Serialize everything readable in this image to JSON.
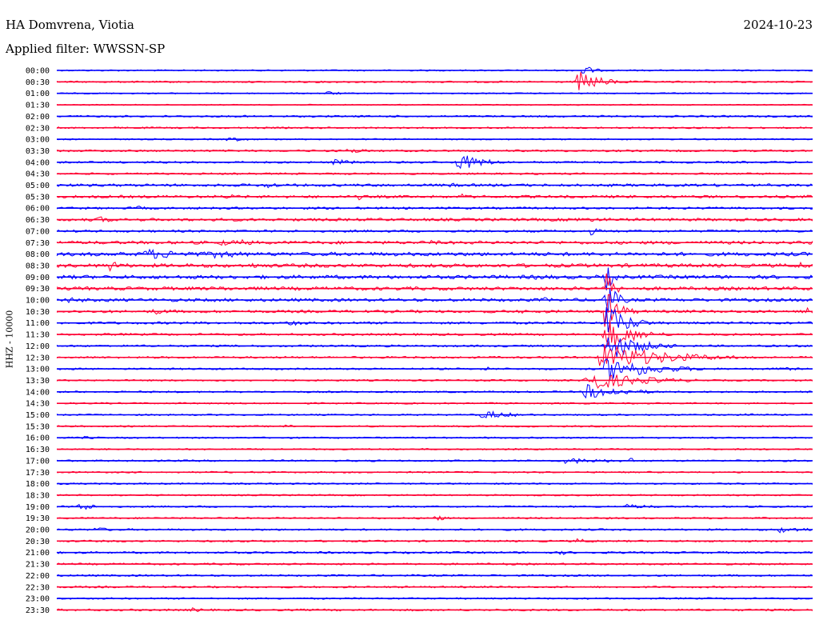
{
  "header": {
    "station": "HA Domvrena, Viotia",
    "date": "2024-10-23",
    "filter": "Applied filter: WWSSN-SP"
  },
  "chart_data": {
    "type": "line",
    "title": "HA Domvrena, Viotia",
    "ylabel": "HHZ - 10000",
    "xlabel": "",
    "categories": [
      "00:00",
      "00:30",
      "01:00",
      "01:30",
      "02:00",
      "02:30",
      "03:00",
      "03:30",
      "04:00",
      "04:30",
      "05:00",
      "05:30",
      "06:00",
      "06:30",
      "07:00",
      "07:30",
      "08:00",
      "08:30",
      "09:00",
      "09:30",
      "10:00",
      "10:30",
      "11:00",
      "11:30",
      "12:00",
      "12:30",
      "13:00",
      "13:30",
      "14:00",
      "14:30",
      "15:00",
      "15:30",
      "16:00",
      "16:30",
      "17:00",
      "17:30",
      "18:00",
      "18:30",
      "19:00",
      "19:30",
      "20:00",
      "20:30",
      "21:00",
      "21:30",
      "22:00",
      "22:30",
      "23:00",
      "23:30"
    ],
    "trace_minutes": 30,
    "grid": false,
    "colors": {
      "even": "#0000ff",
      "odd": "#ff0033"
    },
    "noise_level": [
      1.0,
      1.2,
      0.9,
      0.8,
      1.3,
      1.2,
      1.0,
      1.4,
      1.4,
      1.3,
      1.9,
      1.9,
      1.6,
      2.0,
      1.6,
      2.2,
      2.6,
      2.6,
      2.6,
      2.4,
      2.2,
      1.9,
      1.7,
      1.5,
      1.4,
      1.4,
      1.3,
      1.2,
      1.2,
      1.1,
      1.1,
      1.1,
      1.1,
      1.1,
      1.2,
      1.1,
      1.1,
      1.1,
      1.2,
      1.2,
      1.3,
      1.3,
      1.4,
      1.3,
      1.3,
      1.3,
      1.2,
      1.4
    ],
    "events": [
      {
        "trace": "00:30",
        "minute": 20.7,
        "amp": 14,
        "dur": 0.9
      },
      {
        "trace": "00:00",
        "minute": 20.8,
        "amp": 10,
        "dur": 0.4
      },
      {
        "trace": "01:00",
        "minute": 10.7,
        "amp": 3,
        "dur": 0.6
      },
      {
        "trace": "03:00",
        "minute": 6.8,
        "amp": 3,
        "dur": 0.9
      },
      {
        "trace": "03:30",
        "minute": 11.5,
        "amp": 4,
        "dur": 0.8
      },
      {
        "trace": "04:00",
        "minute": 11.0,
        "amp": 4,
        "dur": 1.0
      },
      {
        "trace": "04:00",
        "minute": 15.9,
        "amp": 12,
        "dur": 1.0
      },
      {
        "trace": "05:00",
        "minute": 8.3,
        "amp": 5,
        "dur": 0.6
      },
      {
        "trace": "05:00",
        "minute": 15.5,
        "amp": 3,
        "dur": 1.2
      },
      {
        "trace": "05:30",
        "minute": 6.7,
        "amp": 3,
        "dur": 1.2
      },
      {
        "trace": "05:30",
        "minute": 12.0,
        "amp": 4,
        "dur": 0.3
      },
      {
        "trace": "05:30",
        "minute": 16.1,
        "amp": 4,
        "dur": 0.4
      },
      {
        "trace": "06:00",
        "minute": 3.2,
        "amp": 3,
        "dur": 0.8
      },
      {
        "trace": "06:30",
        "minute": 1.7,
        "amp": 5,
        "dur": 0.5
      },
      {
        "trace": "06:30",
        "minute": 20.3,
        "amp": 3,
        "dur": 4.0
      },
      {
        "trace": "07:00",
        "minute": 21.2,
        "amp": 5,
        "dur": 0.4
      },
      {
        "trace": "07:30",
        "minute": 6.5,
        "amp": 4,
        "dur": 1.5
      },
      {
        "trace": "07:30",
        "minute": 7.3,
        "amp": 4,
        "dur": 1.0
      },
      {
        "trace": "07:30",
        "minute": 14.9,
        "amp": 5,
        "dur": 0.3
      },
      {
        "trace": "08:00",
        "minute": 3.5,
        "amp": 7,
        "dur": 2.5
      },
      {
        "trace": "08:00",
        "minute": 6.3,
        "amp": 6,
        "dur": 1.5
      },
      {
        "trace": "08:30",
        "minute": 2.1,
        "amp": 8,
        "dur": 0.5
      },
      {
        "trace": "08:30",
        "minute": 7.8,
        "amp": 4,
        "dur": 1.2
      },
      {
        "trace": "08:30",
        "minute": 29.5,
        "amp": 5,
        "dur": 0.6
      },
      {
        "trace": "09:00",
        "minute": 19.0,
        "amp": 4,
        "dur": 1.5
      },
      {
        "trace": "09:00",
        "minute": 21.8,
        "amp": 18,
        "dur": 0.3
      },
      {
        "trace": "09:30",
        "minute": 6.5,
        "amp": 4,
        "dur": 0.6
      },
      {
        "trace": "09:30",
        "minute": 21.8,
        "amp": 24,
        "dur": 0.3
      },
      {
        "trace": "09:30",
        "minute": 26.4,
        "amp": 4,
        "dur": 0.2
      },
      {
        "trace": "10:00",
        "minute": 0.4,
        "amp": 4,
        "dur": 1.2
      },
      {
        "trace": "10:00",
        "minute": 19.4,
        "amp": 5,
        "dur": 0.2
      },
      {
        "trace": "10:00",
        "minute": 21.8,
        "amp": 26,
        "dur": 0.4
      },
      {
        "trace": "10:30",
        "minute": 3.8,
        "amp": 4,
        "dur": 1.2
      },
      {
        "trace": "10:30",
        "minute": 18.5,
        "amp": 3,
        "dur": 0.8
      },
      {
        "trace": "10:30",
        "minute": 21.8,
        "amp": 30,
        "dur": 0.5
      },
      {
        "trace": "10:30",
        "minute": 29.8,
        "amp": 6,
        "dur": 0.3
      },
      {
        "trace": "11:00",
        "minute": 9.2,
        "amp": 4,
        "dur": 0.9
      },
      {
        "trace": "11:00",
        "minute": 21.8,
        "amp": 26,
        "dur": 0.8
      },
      {
        "trace": "11:30",
        "minute": 21.8,
        "amp": 22,
        "dur": 1.0
      },
      {
        "trace": "11:30",
        "minute": 23.4,
        "amp": 3,
        "dur": 0.8
      },
      {
        "trace": "12:00",
        "minute": 21.8,
        "amp": 20,
        "dur": 1.2
      },
      {
        "trace": "12:00",
        "minute": 23.8,
        "amp": 5,
        "dur": 0.6
      },
      {
        "trace": "12:30",
        "minute": 21.6,
        "amp": 18,
        "dur": 2.5
      },
      {
        "trace": "12:30",
        "minute": 25.3,
        "amp": 4,
        "dur": 0.3
      },
      {
        "trace": "13:00",
        "minute": 17.0,
        "amp": 3,
        "dur": 0.6
      },
      {
        "trace": "13:00",
        "minute": 21.8,
        "amp": 16,
        "dur": 1.8
      },
      {
        "trace": "13:00",
        "minute": 28.6,
        "amp": 3,
        "dur": 0.9
      },
      {
        "trace": "13:30",
        "minute": 21.0,
        "amp": 14,
        "dur": 2.0
      },
      {
        "trace": "14:00",
        "minute": 21.0,
        "amp": 10,
        "dur": 1.5
      },
      {
        "trace": "14:00",
        "minute": 21.8,
        "amp": 8,
        "dur": 0.4
      },
      {
        "trace": "15:00",
        "minute": 16.9,
        "amp": 6,
        "dur": 1.2
      },
      {
        "trace": "15:00",
        "minute": 27.3,
        "amp": 3,
        "dur": 0.8
      },
      {
        "trace": "15:30",
        "minute": 9.0,
        "amp": 2,
        "dur": 1.5
      },
      {
        "trace": "16:00",
        "minute": 1.0,
        "amp": 2,
        "dur": 1.2
      },
      {
        "trace": "17:00",
        "minute": 20.2,
        "amp": 4,
        "dur": 2.2
      },
      {
        "trace": "17:00",
        "minute": 22.7,
        "amp": 4,
        "dur": 0.5
      },
      {
        "trace": "19:00",
        "minute": 0.9,
        "amp": 6,
        "dur": 0.6
      },
      {
        "trace": "19:00",
        "minute": 22.6,
        "amp": 3,
        "dur": 1.5
      },
      {
        "trace": "19:30",
        "minute": 15.0,
        "amp": 5,
        "dur": 0.4
      },
      {
        "trace": "20:00",
        "minute": 1.5,
        "amp": 3,
        "dur": 1.0
      },
      {
        "trace": "20:00",
        "minute": 28.7,
        "amp": 4,
        "dur": 1.5
      },
      {
        "trace": "20:30",
        "minute": 20.6,
        "amp": 3,
        "dur": 1.2
      },
      {
        "trace": "21:00",
        "minute": 20.0,
        "amp": 3,
        "dur": 0.5
      },
      {
        "trace": "21:30",
        "minute": 6.7,
        "amp": 2,
        "dur": 1.0
      },
      {
        "trace": "22:00",
        "minute": 0.9,
        "amp": 2,
        "dur": 0.6
      },
      {
        "trace": "23:30",
        "minute": 5.3,
        "amp": 3,
        "dur": 1.0
      }
    ]
  }
}
